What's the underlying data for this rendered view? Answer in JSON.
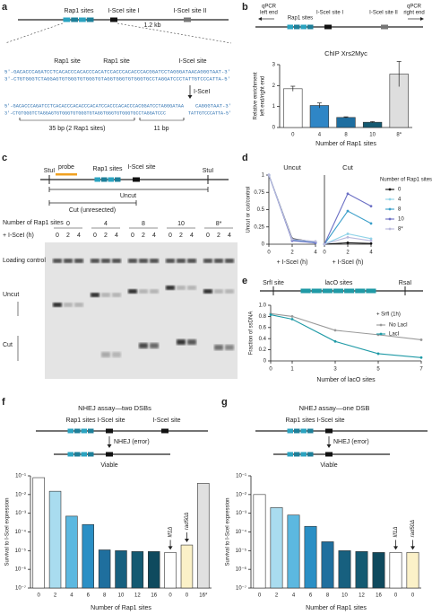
{
  "panels": {
    "a": {
      "letter": "a",
      "construct": [
        "Rap1 sites",
        "I-SceI site I",
        "1.2 kb",
        "I-SceI site II"
      ],
      "zoom": [
        "Rap1 site",
        "Rap1 site",
        "I-SceI site"
      ],
      "seq_uncut": [
        "5′-GACACCCAGATCCTCACACCCACACCCACATCCACCCACACCCACGGATCCTAGGGATAACAGGGTAAT-3′",
        "3′-CTGTGGGTCTAGGAGTGTGGGTGTGGGTGTAGGTGGGTGTGGGTGCCTAGGATCCCTATTGTCCCATTA-5′"
      ],
      "enzyme": "I-SceI",
      "seq_cut": [
        "5′-GACACCCAGATCCTCACACCCACACCCACATCCACCCACACCCACGGATCCTAGGGATAA",
        "CAGGGTAAT-3′",
        "3′-CTGTGGGTCTAGGAGTGTGGGTGTGGGTGTAGGTGGGTGTGGGTGCCTAGGATCCC",
        "TATTGTCCCATTA-5′"
      ],
      "lengths": [
        "35 bp (2 Rap1 sites)",
        "11 bp"
      ]
    },
    "b": {
      "letter": "b",
      "construct": [
        [
          "qPCR",
          "left end"
        ],
        "Rap1 sites",
        "I-SceI site I",
        "I-SceI site II",
        [
          "qPCR",
          "right end"
        ]
      ]
    },
    "c": {
      "letter": "c",
      "construct": [
        "StuI",
        "probe",
        "Rap1 sites",
        "I-SceI site",
        "StuI"
      ],
      "fragments": [
        "Uncut",
        "Cut (unresected)"
      ],
      "gel": {
        "row_labels": [
          "Number of Rap1 sites",
          "+ I-SceI (h)"
        ],
        "groups": [
          "0",
          "4",
          "8",
          "10",
          "8*"
        ],
        "times": [
          "0",
          "2",
          "4"
        ],
        "band_labels": [
          "Loading control",
          "Uncut",
          "Cut"
        ]
      }
    },
    "d": {
      "letter": "d"
    },
    "e": {
      "letter": "e",
      "construct": [
        "SrfI site",
        "lacO sites",
        "RsaI"
      ]
    },
    "f": {
      "letter": "f",
      "title": "NHEJ assay—two DSBs",
      "construct": [
        "Rap1 sites",
        "I-SceI site",
        "I-SceI site"
      ],
      "repair": "NHEJ (error)",
      "outcome": "Viable"
    },
    "g": {
      "letter": "g",
      "title": "NHEJ assay—one DSB",
      "construct": [
        "Rap1 sites",
        "I-SceI site"
      ],
      "repair": "NHEJ (error)",
      "outcome": "Viable"
    }
  },
  "chart_data": [
    {
      "type": "bar",
      "title": "ChIP Xrs2Myc",
      "categories": [
        "0",
        "4",
        "8",
        "10",
        "8*"
      ],
      "values": [
        1.85,
        1.05,
        0.48,
        0.25,
        2.55
      ],
      "errors": [
        0.12,
        0.12,
        0.03,
        0.03,
        0.6
      ],
      "colors": [
        "#ffffff",
        "#2f86c6",
        "#1e6ea0",
        "#145a72",
        "#dedede"
      ],
      "ylim": [
        0,
        3
      ],
      "yticks": [
        0,
        1,
        2,
        3
      ],
      "ylabel": [
        "Relative enrichment",
        "left end/right end"
      ],
      "xlabel": "Number of Rap1 sites"
    },
    {
      "type": "line",
      "title": "Uncut",
      "x": [
        0,
        2,
        4
      ],
      "xlim": [
        0,
        4
      ],
      "xticks": [
        0,
        2,
        4
      ],
      "ylim": [
        0,
        1
      ],
      "yticks": [
        0,
        0.25,
        0.5,
        0.75,
        1
      ],
      "ylabel": "Uncut or cut/control",
      "xlabel": "+ I-SceI (h)",
      "series": [
        {
          "color": "#111111",
          "values": [
            1,
            0.08,
            0.03
          ]
        },
        {
          "color": "#8fd3e8",
          "values": [
            1,
            0.07,
            0.03
          ]
        },
        {
          "color": "#3a9ec9",
          "values": [
            1,
            0.06,
            0.02
          ]
        },
        {
          "color": "#6b6fc4",
          "values": [
            1,
            0.05,
            0.02
          ]
        },
        {
          "color": "#b9b9dc",
          "values": [
            1,
            0.07,
            0.04
          ]
        }
      ]
    },
    {
      "type": "line",
      "title": "Cut",
      "x": [
        0,
        2,
        4
      ],
      "xlim": [
        0,
        4
      ],
      "xticks": [
        0,
        2,
        4
      ],
      "ylim": [
        0,
        1
      ],
      "xlabel": "+ I-SceI (h)",
      "legend_title": "Number of Rap1 sites",
      "series": [
        {
          "name": "0",
          "color": "#111111",
          "values": [
            0,
            0.02,
            0.01
          ]
        },
        {
          "name": "4",
          "color": "#8fd3e8",
          "values": [
            0,
            0.15,
            0.08
          ]
        },
        {
          "name": "8",
          "color": "#3a9ec9",
          "values": [
            0,
            0.48,
            0.3
          ]
        },
        {
          "name": "10",
          "color": "#6b6fc4",
          "values": [
            0,
            0.73,
            0.55
          ]
        },
        {
          "name": "8*",
          "color": "#b9b9dc",
          "values": [
            0,
            0.1,
            0.05
          ]
        }
      ]
    },
    {
      "type": "line",
      "x": [
        0,
        1,
        3,
        5,
        7
      ],
      "xlim": [
        0,
        7
      ],
      "xticks": [
        0,
        1,
        3,
        5,
        7
      ],
      "ylim": [
        0,
        1
      ],
      "yticks": [
        0,
        0.2,
        0.4,
        0.6,
        0.8,
        {
          "value": 1,
          "label": "1.0"
        }
      ],
      "ylabel": "Fraction of ssDNA",
      "xlabel": "Number of lacO sites",
      "annotation": "+ SrfI (1h)",
      "series": [
        {
          "name": "No LacI",
          "color": "#999999",
          "values": [
            0.85,
            0.8,
            0.55,
            0.47,
            0.38
          ]
        },
        {
          "name": "LacI",
          "color": "#1f9aa6",
          "values": [
            0.83,
            0.75,
            0.35,
            0.13,
            0.06
          ]
        }
      ]
    },
    {
      "type": "bar",
      "log_y": true,
      "categories": [
        "0",
        "2",
        "4",
        "6",
        "8",
        "10",
        "12",
        "16",
        "0",
        "0",
        "16*"
      ],
      "values": [
        0.08,
        0.015,
        0.0007,
        0.00025,
        1.1e-05,
        1e-05,
        9e-06,
        9e-06,
        8e-06,
        2e-05,
        0.04
      ],
      "colors": [
        "#ffffff",
        "#a9dcef",
        "#5cb8e0",
        "#2a8fc5",
        "#1f6f9e",
        "#17607f",
        "#145a72",
        "#0f4a5e",
        "#ffffff",
        "#fbf1c8",
        "#e0e0e0"
      ],
      "ylim": [
        1e-07,
        0.1
      ],
      "yticks": [
        {
          "value": 1e-07,
          "label": "10⁻⁷"
        },
        {
          "value": 1e-06,
          "label": "10⁻⁶"
        },
        {
          "value": 1e-05,
          "label": "10⁻⁵"
        },
        {
          "value": 0.0001,
          "label": "10⁻⁴"
        },
        {
          "value": 0.001,
          "label": "10⁻³"
        },
        {
          "value": 0.01,
          "label": "10⁻²"
        },
        {
          "value": 0.1,
          "label": "10⁻¹"
        }
      ],
      "ylabel": "Survival to I-SceI expression",
      "xlabel": "Number of Rap1 sites",
      "annotations": [
        "lif1Δ",
        "rad50Δ"
      ]
    },
    {
      "type": "bar",
      "log_y": true,
      "categories": [
        "0",
        "2",
        "4",
        "6",
        "8",
        "10",
        "12",
        "16",
        "0",
        "0"
      ],
      "values": [
        0.01,
        0.002,
        0.0008,
        0.0002,
        3e-05,
        1e-05,
        9e-06,
        8e-06,
        8e-06,
        8e-06
      ],
      "colors": [
        "#ffffff",
        "#a9dcef",
        "#5cb8e0",
        "#2a8fc5",
        "#1f6f9e",
        "#17607f",
        "#145a72",
        "#0f4a5e",
        "#ffffff",
        "#fbf1c8"
      ],
      "ylim": [
        1e-07,
        0.1
      ],
      "yticks": [
        {
          "value": 1e-07,
          "label": "10⁻⁷"
        },
        {
          "value": 1e-06,
          "label": "10⁻⁶"
        },
        {
          "value": 1e-05,
          "label": "10⁻⁵"
        },
        {
          "value": 0.0001,
          "label": "10⁻⁴"
        },
        {
          "value": 0.001,
          "label": "10⁻³"
        },
        {
          "value": 0.01,
          "label": "10⁻²"
        },
        {
          "value": 0.1,
          "label": "10⁻¹"
        }
      ],
      "ylabel": "Survival to I-SceI expression",
      "xlabel": "Number of Rap1 sites",
      "annotations": [
        "lif1Δ",
        "rad50Δ"
      ]
    }
  ]
}
